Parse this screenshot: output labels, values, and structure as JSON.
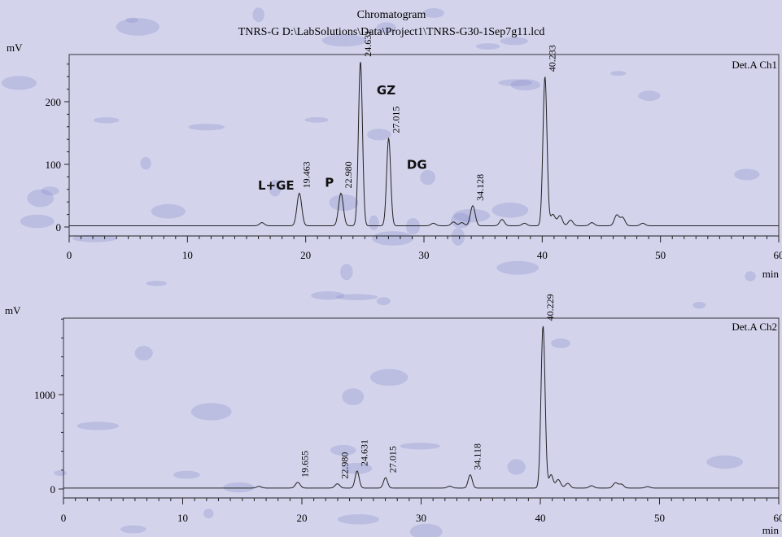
{
  "header": {
    "title": "Chromatogram",
    "subtitle": "TNRS-G D:\\LabSolutions\\Data\\Project1\\TNRS-G30-1Sep7g11.lcd"
  },
  "chart_data": [
    {
      "type": "line",
      "detector": "Det.A Ch1",
      "ylabel": "mV",
      "xlabel": "min",
      "xlim": [
        0,
        60
      ],
      "ylim": [
        -25,
        275
      ],
      "x_ticks": [
        0,
        10,
        20,
        30,
        40,
        50,
        60
      ],
      "y_ticks": [
        0,
        100,
        200
      ],
      "grid": false,
      "baseline": 2,
      "peaks": [
        {
          "rt": 16.3,
          "height": 5,
          "label": ""
        },
        {
          "rt": 19.463,
          "height": 52,
          "label": "19.463"
        },
        {
          "rt": 22.98,
          "height": 52,
          "label": "22.980"
        },
        {
          "rt": 24.631,
          "height": 262,
          "label": "24.631"
        },
        {
          "rt": 27.015,
          "height": 140,
          "label": "27.015"
        },
        {
          "rt": 30.8,
          "height": 4,
          "label": ""
        },
        {
          "rt": 32.5,
          "height": 6,
          "label": ""
        },
        {
          "rt": 33.2,
          "height": 5,
          "label": ""
        },
        {
          "rt": 34.128,
          "height": 32,
          "label": "34.128"
        },
        {
          "rt": 36.6,
          "height": 10,
          "label": ""
        },
        {
          "rt": 38.5,
          "height": 4,
          "label": ""
        },
        {
          "rt": 40.233,
          "height": 238,
          "label": "40.233"
        },
        {
          "rt": 40.9,
          "height": 18,
          "label": ""
        },
        {
          "rt": 41.5,
          "height": 16,
          "label": ""
        },
        {
          "rt": 42.4,
          "height": 9,
          "label": ""
        },
        {
          "rt": 44.2,
          "height": 5,
          "label": ""
        },
        {
          "rt": 46.3,
          "height": 17,
          "label": ""
        },
        {
          "rt": 46.8,
          "height": 13,
          "label": ""
        },
        {
          "rt": 48.5,
          "height": 4,
          "label": ""
        }
      ],
      "annotations": [
        {
          "text": "L+GE",
          "x": 17.5,
          "y": 60
        },
        {
          "text": "P",
          "x": 22.0,
          "y": 64
        },
        {
          "text": "GZ",
          "x": 26.8,
          "y": 212
        },
        {
          "text": "DG",
          "x": 29.4,
          "y": 93
        }
      ]
    },
    {
      "type": "line",
      "detector": "Det.A Ch2",
      "ylabel": "mV",
      "xlabel": "min",
      "xlim": [
        0,
        60
      ],
      "ylim": [
        -120,
        1850
      ],
      "x_ticks": [
        0,
        10,
        20,
        30,
        40,
        50,
        60
      ],
      "y_ticks": [
        0,
        1000
      ],
      "grid": false,
      "baseline": 10,
      "peaks": [
        {
          "rt": 16.4,
          "height": 18,
          "label": ""
        },
        {
          "rt": 19.655,
          "height": 60,
          "label": "19.655"
        },
        {
          "rt": 22.98,
          "height": 45,
          "label": "22.980"
        },
        {
          "rt": 24.631,
          "height": 180,
          "label": "24.631"
        },
        {
          "rt": 27.015,
          "height": 110,
          "label": "27.015"
        },
        {
          "rt": 32.4,
          "height": 20,
          "label": ""
        },
        {
          "rt": 34.118,
          "height": 140,
          "label": "34.118"
        },
        {
          "rt": 40.229,
          "height": 1720,
          "label": "40.229"
        },
        {
          "rt": 40.9,
          "height": 140,
          "label": ""
        },
        {
          "rt": 41.5,
          "height": 90,
          "label": ""
        },
        {
          "rt": 42.3,
          "height": 50,
          "label": ""
        },
        {
          "rt": 44.3,
          "height": 25,
          "label": ""
        },
        {
          "rt": 46.3,
          "height": 55,
          "label": ""
        },
        {
          "rt": 46.8,
          "height": 40,
          "label": ""
        },
        {
          "rt": 49.0,
          "height": 15,
          "label": ""
        }
      ],
      "annotations": []
    }
  ]
}
